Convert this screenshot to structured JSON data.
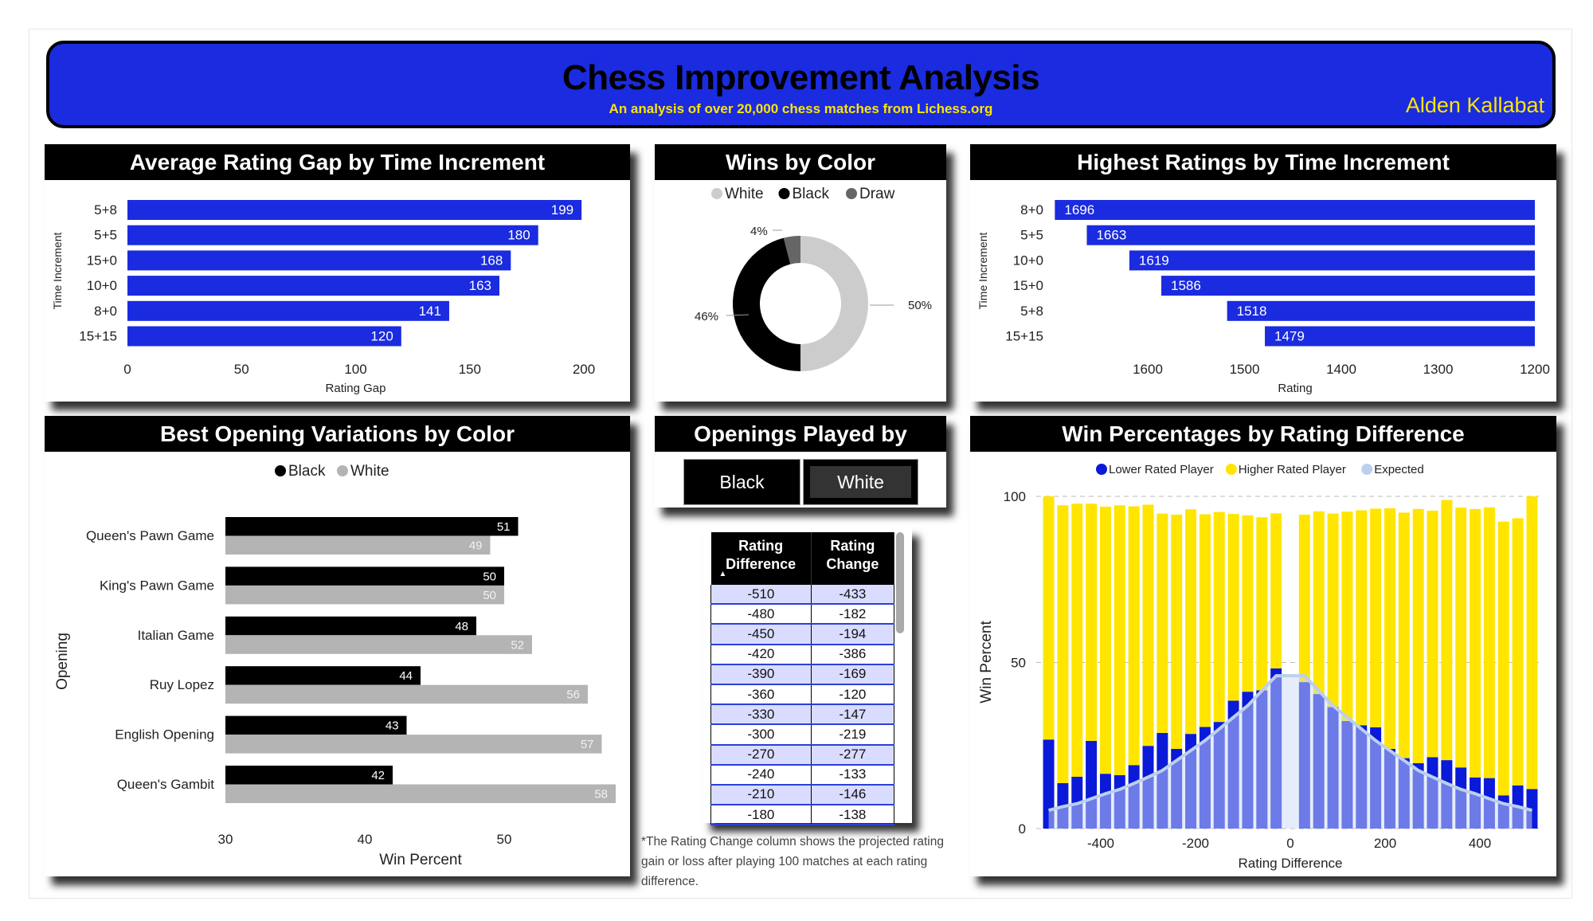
{
  "header": {
    "title": "Chess Improvement Analysis",
    "subtitle": "An analysis of over 20,000 chess matches from Lichess.org",
    "author": "Alden Kallabat"
  },
  "colors": {
    "accent_blue": "#1a2be0",
    "yellow": "#ffe500",
    "expected": "#bcd0ee",
    "white_series": "#b4b4b4",
    "black_series": "#000000",
    "draw": "#666666"
  },
  "openings_filter": {
    "title": "Openings Played by",
    "options": [
      "Black",
      "White"
    ],
    "selected": "White"
  },
  "rating_table": {
    "columns": [
      "Rating Difference",
      "Rating Change"
    ],
    "sort_icon": "triangle-up-icon",
    "rows": [
      [
        "-510",
        "-433"
      ],
      [
        "-480",
        "-182"
      ],
      [
        "-450",
        "-194"
      ],
      [
        "-420",
        "-386"
      ],
      [
        "-390",
        "-169"
      ],
      [
        "-360",
        "-120"
      ],
      [
        "-330",
        "-147"
      ],
      [
        "-300",
        "-219"
      ],
      [
        "-270",
        "-277"
      ],
      [
        "-240",
        "-133"
      ],
      [
        "-210",
        "-146"
      ],
      [
        "-180",
        "-138"
      ]
    ],
    "note": "*The Rating Change column shows the projected rating gain or loss after playing 100 matches at each rating difference."
  },
  "chart_data": [
    {
      "id": "avg_gap",
      "type": "bar",
      "orientation": "horizontal",
      "title": "Average Rating Gap by Time Increment",
      "xlabel": "Rating Gap",
      "ylabel": "Time Increment",
      "categories": [
        "5+8",
        "5+5",
        "15+0",
        "10+0",
        "8+0",
        "15+15"
      ],
      "values": [
        199,
        180,
        168,
        163,
        141,
        120
      ],
      "xlim": [
        0,
        200
      ],
      "xticks": [
        0,
        50,
        100,
        150,
        200
      ],
      "data_labels": true
    },
    {
      "id": "wins_color",
      "type": "pie",
      "donut": true,
      "title": "Wins by Color",
      "legend": "top",
      "slices": [
        {
          "name": "White",
          "value": 50,
          "label": "50%",
          "color": "#cccccc"
        },
        {
          "name": "Black",
          "value": 46,
          "label": "46%",
          "color": "#000000"
        },
        {
          "name": "Draw",
          "value": 4,
          "label": "4%",
          "color": "#666666"
        }
      ]
    },
    {
      "id": "highest",
      "type": "bar",
      "orientation": "horizontal",
      "title": "Highest Ratings by Time Increment",
      "xlabel": "Rating",
      "ylabel": "Time Increment",
      "categories": [
        "8+0",
        "5+5",
        "10+0",
        "15+0",
        "5+8",
        "15+15"
      ],
      "values": [
        1696,
        1663,
        1619,
        1586,
        1518,
        1479
      ],
      "xlim": [
        1700,
        1200
      ],
      "x_reversed": true,
      "xticks": [
        1600,
        1500,
        1400,
        1300,
        1200
      ],
      "data_labels": true
    },
    {
      "id": "openings",
      "type": "bar",
      "orientation": "horizontal",
      "title": "Best Opening Variations by Color",
      "xlabel": "Win Percent",
      "ylabel": "Opening",
      "legend": "top",
      "categories": [
        "Queen's Pawn Game",
        "King's Pawn Game",
        "Italian Game",
        "Ruy Lopez",
        "English Opening",
        "Queen's Gambit"
      ],
      "series": [
        {
          "name": "Black",
          "values": [
            51,
            50,
            48,
            44,
            43,
            42
          ]
        },
        {
          "name": "White",
          "values": [
            49,
            50,
            52,
            56,
            57,
            58
          ]
        }
      ],
      "xlim": [
        30,
        58
      ],
      "xticks": [
        30,
        40,
        50
      ],
      "data_labels": true
    },
    {
      "id": "winpct",
      "type": "bar",
      "stacked": true,
      "title": "Win Percentages by Rating Difference",
      "xlabel": "Rating Difference",
      "ylabel": "Win Percent",
      "legend": "top",
      "x": [
        -510,
        -480,
        -450,
        -420,
        -390,
        -360,
        -330,
        -300,
        -270,
        -240,
        -210,
        -180,
        -150,
        -120,
        -90,
        -60,
        -30,
        30,
        60,
        90,
        120,
        150,
        180,
        210,
        240,
        270,
        300,
        330,
        360,
        390,
        420,
        450,
        480,
        510
      ],
      "series": [
        {
          "name": "Lower Rated Player",
          "values": [
            26.8,
            13.7,
            15.6,
            26.4,
            16.5,
            16.1,
            19.1,
            24.9,
            28.8,
            24,
            28.5,
            30.6,
            32.1,
            38.5,
            41.2,
            41.6,
            48.2,
            44.1,
            40.5,
            36.6,
            32.4,
            31.1,
            30.5,
            24,
            21.2,
            19.7,
            21.5,
            20.6,
            18.4,
            15.4,
            15.2,
            10,
            13,
            11.9
          ]
        },
        {
          "name": "Higher Rated Player",
          "values": [
            73.2,
            83.6,
            82.2,
            71.4,
            80.4,
            81.2,
            77.9,
            72.6,
            66,
            70.5,
            67.6,
            64,
            63.2,
            56.2,
            53.1,
            52.1,
            46.7,
            50.4,
            55,
            58.2,
            63,
            64.7,
            65.8,
            72.4,
            73.9,
            76.5,
            74.2,
            78.3,
            78.2,
            80.8,
            81.5,
            82.4,
            80.4,
            88.1
          ]
        },
        {
          "name": "Expected",
          "type": "line",
          "values": [
            5.5,
            6.6,
            7.5,
            9,
            10.5,
            11.8,
            13.6,
            15.5,
            17.5,
            20.5,
            23.5,
            26.5,
            30,
            33.5,
            37,
            41.5,
            46,
            46,
            41.5,
            37,
            33.5,
            30,
            26.5,
            23.5,
            20.5,
            17.5,
            15.5,
            13.6,
            11.8,
            10.5,
            9,
            7.5,
            6.6,
            5.5
          ]
        }
      ],
      "xlim": [
        -530,
        530
      ],
      "ylim": [
        0,
        100
      ],
      "xticks": [
        -400,
        -200,
        0,
        200,
        400
      ],
      "yticks": [
        0,
        50,
        100
      ],
      "grid": "horizontal dashed"
    }
  ]
}
